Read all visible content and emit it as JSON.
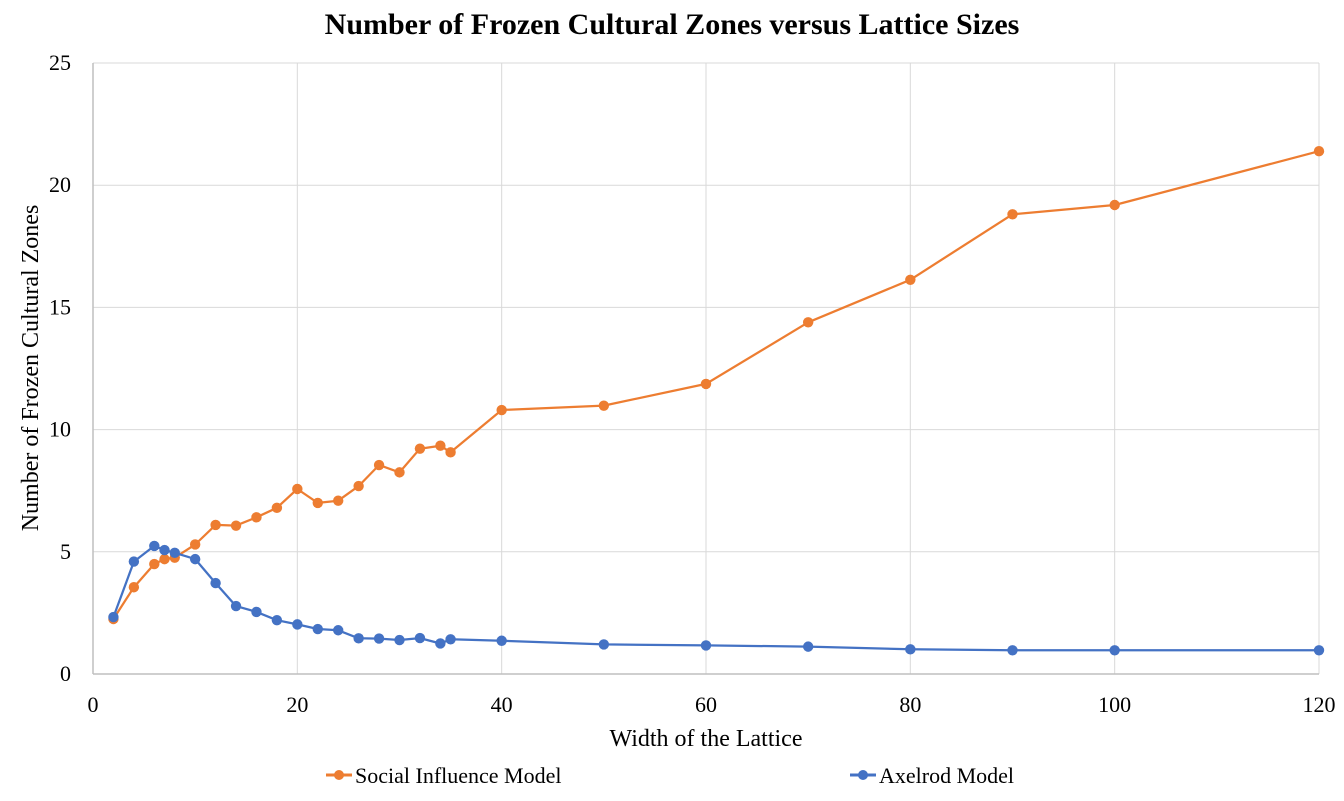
{
  "chart_data": {
    "type": "line",
    "title": "Number of Frozen Cultural Zones versus Lattice Sizes",
    "xlabel": "Width of the Lattice",
    "ylabel": "Number of Frozen Cultural Zones",
    "xlim": [
      0,
      120
    ],
    "ylim": [
      0,
      25
    ],
    "xticks": [
      0,
      20,
      40,
      60,
      80,
      100,
      120
    ],
    "yticks": [
      0,
      5,
      10,
      15,
      20,
      25
    ],
    "xtick_labels": [
      "0",
      "20",
      "40",
      "60",
      "80",
      "100",
      "120"
    ],
    "ytick_labels": [
      "0",
      "5",
      "10",
      "15",
      "20",
      "25"
    ],
    "grid": true,
    "legend_position": "bottom",
    "series": [
      {
        "name": "Social Influence Model",
        "color": "#ED7D31",
        "x": [
          2,
          4,
          6,
          7,
          8,
          10,
          12,
          14,
          16,
          18,
          20,
          22,
          24,
          26,
          28,
          30,
          32,
          34,
          35,
          40,
          50,
          60,
          70,
          80,
          90,
          100,
          120
        ],
        "values": [
          2.25,
          3.55,
          4.5,
          4.7,
          4.76,
          5.3,
          6.1,
          6.07,
          6.41,
          6.8,
          7.57,
          7.0,
          7.09,
          7.69,
          8.55,
          8.25,
          9.22,
          9.34,
          9.07,
          10.8,
          10.98,
          11.87,
          14.39,
          16.13,
          18.81,
          19.19,
          21.39
        ]
      },
      {
        "name": "Axelrod Model",
        "color": "#4472C4",
        "x": [
          2,
          4,
          6,
          7,
          8,
          10,
          12,
          14,
          16,
          18,
          20,
          22,
          24,
          26,
          28,
          30,
          32,
          34,
          35,
          40,
          50,
          60,
          70,
          80,
          90,
          100,
          120
        ],
        "values": [
          2.33,
          4.6,
          5.24,
          5.07,
          4.96,
          4.7,
          3.72,
          2.78,
          2.54,
          2.2,
          2.03,
          1.84,
          1.79,
          1.46,
          1.45,
          1.39,
          1.47,
          1.25,
          1.42,
          1.36,
          1.21,
          1.17,
          1.12,
          1.01,
          0.97,
          0.97,
          0.97
        ]
      }
    ]
  }
}
